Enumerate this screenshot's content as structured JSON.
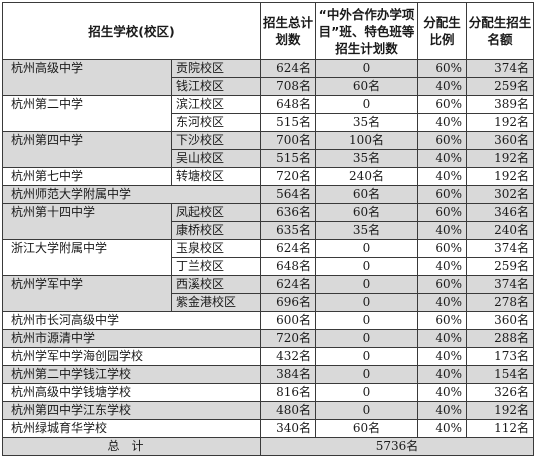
{
  "headers": {
    "school": "招生学校(校区)",
    "total_plan": "招生总计划数",
    "special_plan": "“中外合作办学项目”班、特色班等招生计划数",
    "ratio": "分配生比例",
    "quota": "分配生招生名额"
  },
  "rows": [
    {
      "school": "杭州高级中学",
      "campus": "贡院校区",
      "total": "624名",
      "special": "0",
      "ratio": "60%",
      "quota": "374名"
    },
    {
      "school": "",
      "campus": "钱江校区",
      "total": "708名",
      "special": "60名",
      "ratio": "40%",
      "quota": "259名"
    },
    {
      "school": "杭州第二中学",
      "campus": "滨江校区",
      "total": "648名",
      "special": "0",
      "ratio": "60%",
      "quota": "389名"
    },
    {
      "school": "",
      "campus": "东河校区",
      "total": "515名",
      "special": "35名",
      "ratio": "40%",
      "quota": "192名"
    },
    {
      "school": "杭州第四中学",
      "campus": "下沙校区",
      "total": "700名",
      "special": "100名",
      "ratio": "60%",
      "quota": "360名"
    },
    {
      "school": "",
      "campus": "吴山校区",
      "total": "515名",
      "special": "35名",
      "ratio": "40%",
      "quota": "192名"
    },
    {
      "school": "杭州第七中学",
      "campus": "转塘校区",
      "total": "720名",
      "special": "240名",
      "ratio": "40%",
      "quota": "192名"
    },
    {
      "school": "杭州师范大学附属中学",
      "campus": "",
      "total": "564名",
      "special": "60名",
      "ratio": "60%",
      "quota": "302名"
    },
    {
      "school": "杭州第十四中学",
      "campus": "凤起校区",
      "total": "636名",
      "special": "60名",
      "ratio": "60%",
      "quota": "346名"
    },
    {
      "school": "",
      "campus": "康桥校区",
      "total": "635名",
      "special": "35名",
      "ratio": "40%",
      "quota": "240名"
    },
    {
      "school": "浙江大学附属中学",
      "campus": "玉泉校区",
      "total": "624名",
      "special": "0",
      "ratio": "60%",
      "quota": "374名"
    },
    {
      "school": "",
      "campus": "丁兰校区",
      "total": "648名",
      "special": "0",
      "ratio": "40%",
      "quota": "259名"
    },
    {
      "school": "杭州学军中学",
      "campus": "西溪校区",
      "total": "624名",
      "special": "0",
      "ratio": "60%",
      "quota": "374名"
    },
    {
      "school": "",
      "campus": "紫金港校区",
      "total": "696名",
      "special": "0",
      "ratio": "40%",
      "quota": "278名"
    },
    {
      "school": "杭州市长河高级中学",
      "campus": "",
      "total": "600名",
      "special": "0",
      "ratio": "60%",
      "quota": "360名"
    },
    {
      "school": "杭州市源清中学",
      "campus": "",
      "total": "720名",
      "special": "0",
      "ratio": "40%",
      "quota": "288名"
    },
    {
      "school": "杭州学军中学海创园学校",
      "campus": "",
      "total": "432名",
      "special": "0",
      "ratio": "40%",
      "quota": "173名"
    },
    {
      "school": "杭州第二中学钱江学校",
      "campus": "",
      "total": "384名",
      "special": "0",
      "ratio": "40%",
      "quota": "154名"
    },
    {
      "school": "杭州高级中学钱塘学校",
      "campus": "",
      "total": "816名",
      "special": "0",
      "ratio": "40%",
      "quota": "326名"
    },
    {
      "school": "杭州第四中学江东学校",
      "campus": "",
      "total": "480名",
      "special": "0",
      "ratio": "40%",
      "quota": "192名"
    },
    {
      "school": "杭州绿城育华学校",
      "campus": "",
      "total": "340名",
      "special": "60名",
      "ratio": "40%",
      "quota": "112名"
    }
  ],
  "footer": {
    "label": "总计",
    "total": "5736名"
  },
  "colors": {
    "shade": "#d9d9d9",
    "border": "#3a3a3a"
  }
}
